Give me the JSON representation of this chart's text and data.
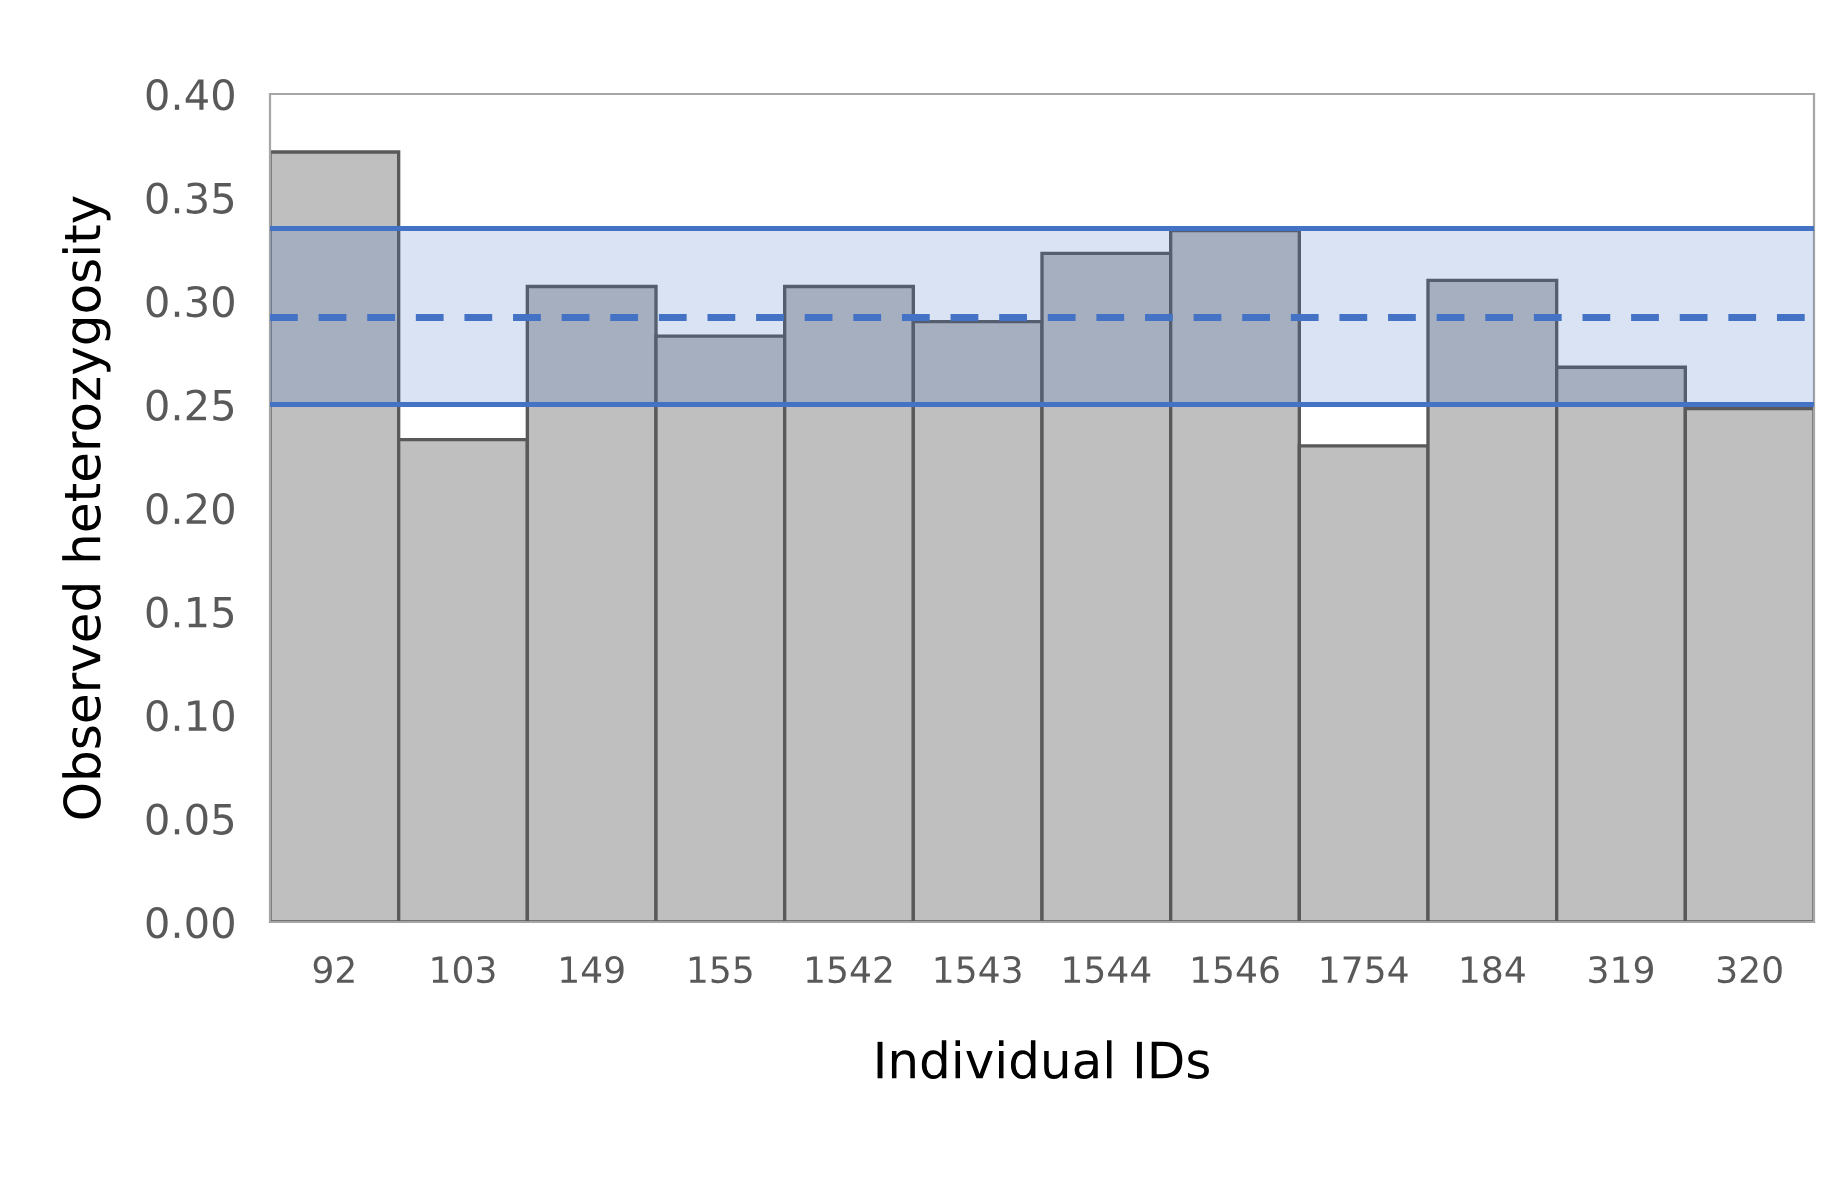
{
  "chart_data": {
    "type": "bar",
    "xlabel": "Individual IDs",
    "ylabel": "Observed heterozygosity",
    "categories": [
      "92",
      "103",
      "149",
      "155",
      "1542",
      "1543",
      "1544",
      "1546",
      "1754",
      "184",
      "319",
      "320"
    ],
    "values": [
      0.372,
      0.233,
      0.307,
      0.283,
      0.307,
      0.29,
      0.323,
      0.334,
      0.23,
      0.31,
      0.268,
      0.248
    ],
    "color": "#bfbfbf",
    "ylim": [
      0,
      0.4
    ],
    "yticks": [
      {
        "value": 0,
        "label": "0.00"
      },
      {
        "value": 0.05,
        "label": "0.05"
      },
      {
        "value": 0.1,
        "label": "0.10"
      },
      {
        "value": 0.15,
        "label": "0.15"
      },
      {
        "value": 0.2,
        "label": "0.20"
      },
      {
        "value": 0.25,
        "label": "0.25"
      },
      {
        "value": 0.3,
        "label": "0.30"
      },
      {
        "value": 0.35,
        "label": "0.35"
      },
      {
        "value": 0.4,
        "label": "0.40"
      }
    ],
    "bands": [
      {
        "axis": "y",
        "from": 0.25,
        "to": 0.335,
        "color": "#4472c4"
      }
    ],
    "ref_lines": [
      {
        "axis": "y",
        "value": 0.335,
        "color": "#4472c4",
        "line_style": "solid"
      },
      {
        "axis": "y",
        "value": 0.292,
        "color": "#4472c4",
        "line_style": "dashed"
      },
      {
        "axis": "y",
        "value": 0.25,
        "color": "#4472c4",
        "line_style": "solid"
      }
    ],
    "grid": false
  }
}
